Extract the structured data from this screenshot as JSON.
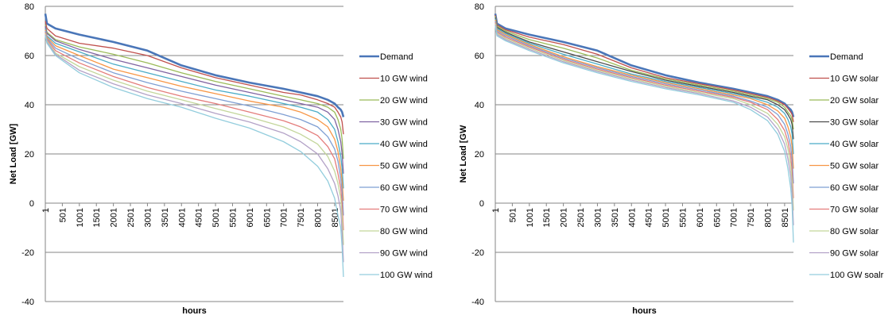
{
  "chart_data": [
    {
      "type": "line",
      "xlabel": "hours",
      "ylabel": "Net Load [GW]",
      "ylim": [
        -40,
        80
      ],
      "yticks": [
        -40,
        -20,
        0,
        20,
        40,
        60,
        80
      ],
      "xticks": [
        "1",
        "501",
        "1001",
        "1501",
        "2001",
        "2501",
        "3001",
        "3501",
        "4001",
        "4501",
        "5001",
        "5501",
        "6001",
        "6501",
        "7001",
        "7501",
        "8001",
        "8501"
      ],
      "xrange": [
        1,
        8760
      ],
      "grid": "horizontal",
      "legend": "right",
      "x": [
        1,
        50,
        300,
        1000,
        2000,
        3000,
        4000,
        5000,
        6000,
        7000,
        7500,
        8000,
        8300,
        8500,
        8600,
        8680,
        8720,
        8760
      ],
      "series": [
        {
          "name": "Demand",
          "color": "#4a76b8",
          "values": [
            77,
            73,
            71,
            68.5,
            65.5,
            62,
            56,
            52,
            49,
            46.5,
            45,
            43.5,
            42,
            40.5,
            39,
            38,
            37,
            35
          ]
        },
        {
          "name": "10 GW wind",
          "color": "#c0504d",
          "values": [
            74,
            71,
            68,
            65,
            63,
            60,
            55,
            51,
            48,
            45,
            44,
            42,
            40.5,
            39,
            37,
            35,
            33,
            28
          ]
        },
        {
          "name": "20 GW wind",
          "color": "#9bbb59",
          "values": [
            72.5,
            69.5,
            66.5,
            63.5,
            60.5,
            57,
            53,
            49.5,
            46.5,
            43.5,
            42,
            40.5,
            39,
            37,
            34,
            30,
            26,
            18
          ]
        },
        {
          "name": "30 GW wind",
          "color": "#8064a2",
          "values": [
            72,
            69,
            66,
            62.5,
            58.5,
            55,
            51.5,
            48,
            45,
            42,
            40.5,
            39,
            37,
            34,
            30,
            25,
            20,
            12
          ]
        },
        {
          "name": "40 GW wind",
          "color": "#4bacc6",
          "values": [
            71,
            68,
            65,
            61.5,
            56.5,
            53,
            49.5,
            46,
            43.5,
            40.5,
            39,
            37,
            34,
            30,
            25,
            19,
            14,
            6
          ]
        },
        {
          "name": "50 GW wind",
          "color": "#f79646",
          "values": [
            70.5,
            67.5,
            64,
            60,
            54.5,
            51,
            47.5,
            44.5,
            41.5,
            39,
            37,
            34,
            31,
            26,
            21,
            14,
            9,
            1
          ]
        },
        {
          "name": "60 GW wind",
          "color": "#7f9fd3",
          "values": [
            70,
            67,
            63,
            58.5,
            53,
            49,
            45.5,
            42.5,
            39.5,
            36,
            34,
            31,
            27,
            22,
            17,
            10,
            5,
            -5
          ]
        },
        {
          "name": "70 GW wind",
          "color": "#e47d7b",
          "values": [
            69.5,
            66.5,
            62,
            57,
            51.5,
            47,
            43.5,
            40.5,
            37,
            33.5,
            31,
            27.5,
            23,
            18,
            12,
            6,
            0,
            -11
          ]
        },
        {
          "name": "80 GW wind",
          "color": "#c3d69b",
          "values": [
            69,
            66,
            61,
            55.5,
            50,
            45.5,
            42,
            38.5,
            35,
            31,
            28,
            24,
            19,
            13,
            8,
            2,
            -5,
            -17
          ]
        },
        {
          "name": "90 GW wind",
          "color": "#b3a2c7",
          "values": [
            68.5,
            65.5,
            60.5,
            54,
            48.5,
            44,
            40.5,
            36.5,
            33,
            28.5,
            25,
            20,
            14,
            8,
            3,
            -3,
            -12,
            -24
          ]
        },
        {
          "name": "100 GW wind",
          "color": "#93cddd",
          "values": [
            68,
            65,
            60,
            53,
            47,
            42.5,
            39,
            34.5,
            30.5,
            25,
            21,
            15,
            9,
            2,
            -5,
            -10,
            -18,
            -30
          ]
        }
      ]
    },
    {
      "type": "line",
      "xlabel": "hours",
      "ylabel": "Net Load [GW",
      "ylim": [
        -40,
        80
      ],
      "yticks": [
        -40,
        -20,
        0,
        20,
        40,
        60,
        80
      ],
      "xticks": [
        "1",
        "501",
        "1001",
        "1501",
        "2001",
        "2501",
        "3001",
        "3501",
        "4001",
        "4501",
        "5001",
        "5501",
        "6001",
        "6501",
        "7001",
        "7501",
        "8001",
        "8501"
      ],
      "xrange": [
        1,
        8760
      ],
      "grid": "horizontal",
      "legend": "right",
      "x": [
        1,
        50,
        300,
        1000,
        2000,
        3000,
        4000,
        5000,
        6000,
        7000,
        7500,
        8000,
        8300,
        8500,
        8600,
        8680,
        8720,
        8760
      ],
      "series": [
        {
          "name": "Demand",
          "color": "#4a76b8",
          "values": [
            77,
            73,
            71,
            68.5,
            65.5,
            62,
            56,
            52,
            49,
            46.5,
            45,
            43.5,
            42,
            40.5,
            39,
            38,
            37,
            35
          ]
        },
        {
          "name": "10 GW solar",
          "color": "#c0504d",
          "values": [
            76.5,
            72.5,
            70.5,
            67.5,
            64.5,
            60.5,
            55,
            51,
            48.5,
            46,
            44.5,
            43,
            41.5,
            40,
            38.5,
            37,
            36,
            33
          ]
        },
        {
          "name": "20 GW solar",
          "color": "#9bbb59",
          "values": [
            76,
            72,
            70,
            66.5,
            63,
            59,
            54,
            50.5,
            48,
            45.5,
            44,
            42.5,
            41,
            39,
            37,
            35.5,
            34,
            30
          ]
        },
        {
          "name": "30 GW solar",
          "color": "#4d4d4d",
          "values": [
            75.5,
            71.5,
            69.5,
            65.5,
            61.5,
            57.5,
            53.5,
            50,
            47.5,
            45,
            43.5,
            42,
            40,
            38,
            36,
            34,
            32,
            26
          ]
        },
        {
          "name": "40 GW solar",
          "color": "#4bacc6",
          "values": [
            75,
            71,
            69,
            65,
            60.5,
            56.5,
            52.5,
            49.5,
            47,
            44.5,
            43,
            41,
            39,
            36.5,
            34,
            31,
            28,
            20
          ]
        },
        {
          "name": "50 GW solar",
          "color": "#f79646",
          "values": [
            74.5,
            70.5,
            68.5,
            64.5,
            59.5,
            55.5,
            52,
            49,
            46.5,
            44,
            42.5,
            40,
            37.5,
            34.5,
            31,
            27,
            23,
            14
          ]
        },
        {
          "name": "60 GW solar",
          "color": "#7f9fd3",
          "values": [
            74,
            70,
            68,
            64,
            59,
            55,
            51.5,
            48.5,
            46,
            43.5,
            41.5,
            39,
            36,
            32,
            28,
            23,
            18,
            8
          ]
        },
        {
          "name": "70 GW solar",
          "color": "#e47d7b",
          "values": [
            73.5,
            69.5,
            67.5,
            63.5,
            58.5,
            54.5,
            51,
            48,
            45.5,
            43,
            41,
            38,
            34,
            29.5,
            25,
            19,
            13,
            2
          ]
        },
        {
          "name": "80 GW solar",
          "color": "#c3d69b",
          "values": [
            73,
            69,
            67,
            63,
            58,
            54,
            50.5,
            47.5,
            45,
            42.5,
            40,
            36.5,
            32,
            27,
            22,
            15,
            9,
            -3
          ]
        },
        {
          "name": "90 GW solar",
          "color": "#b3a2c7",
          "values": [
            72.5,
            68.5,
            66.5,
            62.5,
            57.5,
            53.5,
            50,
            47,
            44.5,
            41.5,
            39,
            35,
            30,
            24,
            18,
            11,
            4,
            -9
          ]
        },
        {
          "name": "100 GW soalr",
          "color": "#93cddd",
          "values": [
            72,
            68,
            66,
            62,
            57,
            53,
            49.5,
            46.5,
            44,
            41,
            38,
            33.5,
            28,
            21,
            14,
            6,
            -1,
            -16
          ]
        }
      ]
    }
  ]
}
